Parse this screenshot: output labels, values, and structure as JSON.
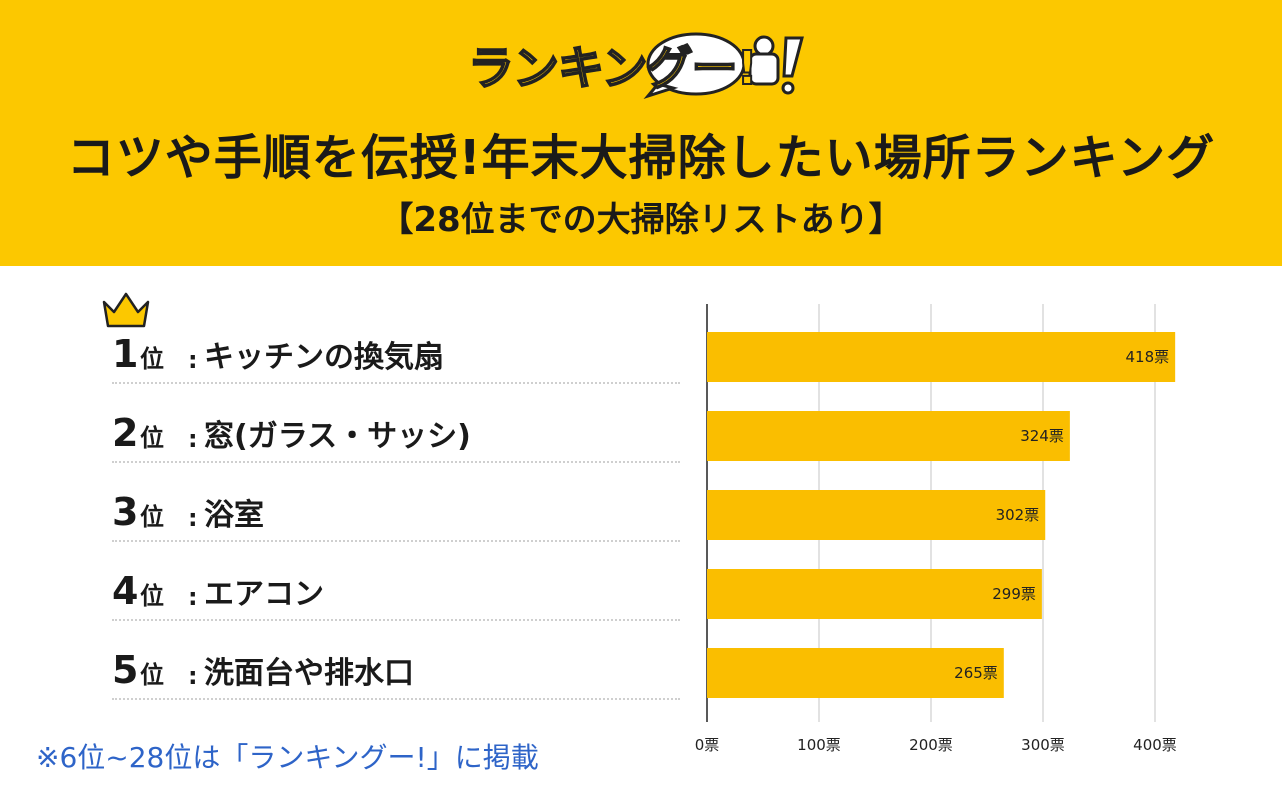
{
  "header": {
    "logo_text": "ランキングー!",
    "title": "コツや手順を伝授!年末大掃除したい場所ランキング",
    "subtitle": "【28位までの大掃除リストあり】"
  },
  "ranking": [
    {
      "rank": "1",
      "unit": "位",
      "colon": ":",
      "label": "キッチンの換気扇"
    },
    {
      "rank": "2",
      "unit": "位",
      "colon": ":",
      "label": "窓(ガラス・サッシ)"
    },
    {
      "rank": "3",
      "unit": "位",
      "colon": ":",
      "label": "浴室"
    },
    {
      "rank": "4",
      "unit": "位",
      "colon": ":",
      "label": "エアコン"
    },
    {
      "rank": "5",
      "unit": "位",
      "colon": ":",
      "label": "洗面台や排水口"
    }
  ],
  "note": "※6位~28位は「ランキングー!」に掲載",
  "colors": {
    "bar": "#fabe00",
    "accent": "#fcc800",
    "note": "#2e64c8",
    "grid": "#d9d9d9"
  },
  "chart_data": {
    "type": "bar",
    "orientation": "horizontal",
    "categories": [
      "キッチンの換気扇",
      "窓(ガラス・サッシ)",
      "浴室",
      "エアコン",
      "洗面台や排水口"
    ],
    "values": [
      418,
      324,
      302,
      299,
      265
    ],
    "value_labels": [
      "418票",
      "324票",
      "302票",
      "299票",
      "265票"
    ],
    "xlim": [
      0,
      400
    ],
    "xticks": [
      0,
      100,
      200,
      300,
      400
    ],
    "xtick_labels": [
      "0票",
      "100票",
      "200票",
      "300票",
      "400票"
    ],
    "grid": true,
    "title": "",
    "xlabel": "",
    "ylabel": ""
  }
}
